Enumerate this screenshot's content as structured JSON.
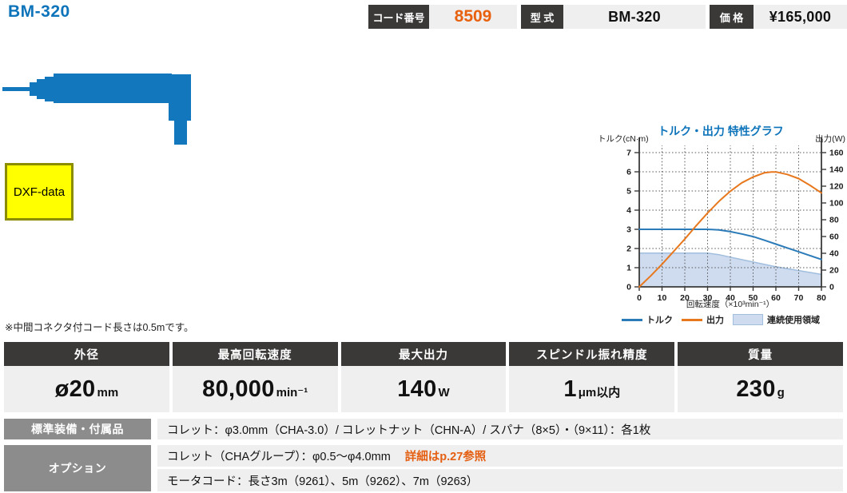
{
  "page": {
    "title": "BM-320"
  },
  "header": {
    "code_label": "コード番号",
    "code_value": "8509",
    "model_label": "型 式",
    "model_value": "BM-320",
    "price_label": "価 格",
    "price_value": "¥165,000"
  },
  "product": {
    "image_name": "bm-320-motor-spindle-silhouette",
    "image_color": "#1377bd",
    "dxf_label": "DXF-data"
  },
  "note": "※中間コネクタ付コード長さは0.5mです。",
  "chart_data": {
    "type": "line",
    "title": "トルク・出力 特性グラフ",
    "title_color": "#0d74ba",
    "x_axis": {
      "label": "回転速度（×10³min⁻¹）",
      "min": 0,
      "max": 80,
      "ticks": [
        0,
        10,
        20,
        30,
        40,
        50,
        60,
        70,
        80
      ]
    },
    "left_axis": {
      "label": "トルク(cN·m)",
      "min": 0,
      "max": 7,
      "ticks": [
        0,
        1,
        2,
        3,
        4,
        5,
        6,
        7
      ]
    },
    "right_axis": {
      "label": "出力(W)",
      "min": 0,
      "max": 160,
      "ticks": [
        0,
        20,
        40,
        60,
        80,
        100,
        120,
        140,
        160
      ]
    },
    "grid": "dotted",
    "legend_position": "bottom",
    "series": [
      {
        "name": "トルク",
        "axis": "left",
        "kind": "line",
        "color": "#2b7bb9",
        "points": [
          [
            0,
            3
          ],
          [
            10,
            3
          ],
          [
            20,
            3
          ],
          [
            30,
            3
          ],
          [
            35,
            2.97
          ],
          [
            40,
            2.88
          ],
          [
            45,
            2.76
          ],
          [
            50,
            2.62
          ],
          [
            55,
            2.43
          ],
          [
            60,
            2.23
          ],
          [
            65,
            2.03
          ],
          [
            70,
            1.83
          ],
          [
            75,
            1.63
          ],
          [
            80,
            1.43
          ]
        ]
      },
      {
        "name": "出力",
        "axis": "right",
        "kind": "line",
        "color": "#e8781e",
        "points": [
          [
            0,
            0
          ],
          [
            5,
            13
          ],
          [
            10,
            27
          ],
          [
            15,
            42
          ],
          [
            20,
            57
          ],
          [
            25,
            73
          ],
          [
            30,
            88
          ],
          [
            35,
            102
          ],
          [
            40,
            114
          ],
          [
            45,
            124
          ],
          [
            50,
            131
          ],
          [
            55,
            136
          ],
          [
            58,
            137
          ],
          [
            60,
            137
          ],
          [
            65,
            134
          ],
          [
            70,
            129
          ],
          [
            75,
            121
          ],
          [
            80,
            112
          ]
        ]
      },
      {
        "name": "連続使用領域",
        "axis": "left",
        "kind": "area",
        "color": "#cfdcf0",
        "edge_color": "#a0bede",
        "points": [
          [
            0,
            1.76
          ],
          [
            30,
            1.76
          ],
          [
            35,
            1.68
          ],
          [
            40,
            1.55
          ],
          [
            45,
            1.42
          ],
          [
            50,
            1.3
          ],
          [
            55,
            1.17
          ],
          [
            60,
            1.05
          ],
          [
            65,
            0.95
          ],
          [
            70,
            0.85
          ],
          [
            75,
            0.75
          ],
          [
            80,
            0.65
          ]
        ]
      }
    ],
    "legend": [
      {
        "label": "トルク",
        "swatch": "line",
        "color": "#2b7bb9"
      },
      {
        "label": "出力",
        "swatch": "line",
        "color": "#e8781e"
      },
      {
        "label": "連続使用領域",
        "swatch": "area",
        "color": "#cfdcf0",
        "edge_color": "#a0bede"
      }
    ]
  },
  "spec": {
    "columns": [
      {
        "header": "外径",
        "value": "ø20",
        "unit": "mm"
      },
      {
        "header": "最高回転速度",
        "value": "80,000",
        "unit": "min⁻¹"
      },
      {
        "header": "最大出力",
        "value": "140",
        "unit": "W"
      },
      {
        "header": "スピンドル振れ精度",
        "value": "1",
        "unit": "μm以内"
      },
      {
        "header": "質量",
        "value": "230",
        "unit": "g"
      }
    ]
  },
  "accessories": {
    "label": "標準装備・付属品",
    "content": "コレット：φ3.0mm（CHA-3.0）/ コレットナット（CHN-A）/ スパナ（8×5）・（9×11）：各1枚"
  },
  "options": {
    "label": "オプション",
    "line1": "コレット（CHAグループ）：φ0.5～φ4.0mm",
    "line1_link": "詳細はp.27参照",
    "line2": "モータコード：長さ3m（9261）、5m（9262）、7m（9263）"
  },
  "colors": {
    "accent_blue": "#0d74ba",
    "accent_orange": "#e8610f",
    "badge_dark": "#3b3938",
    "cell_gray": "#efefef",
    "label_gray": "#8c8c8c",
    "dxf_yellow": "#ffff00"
  }
}
